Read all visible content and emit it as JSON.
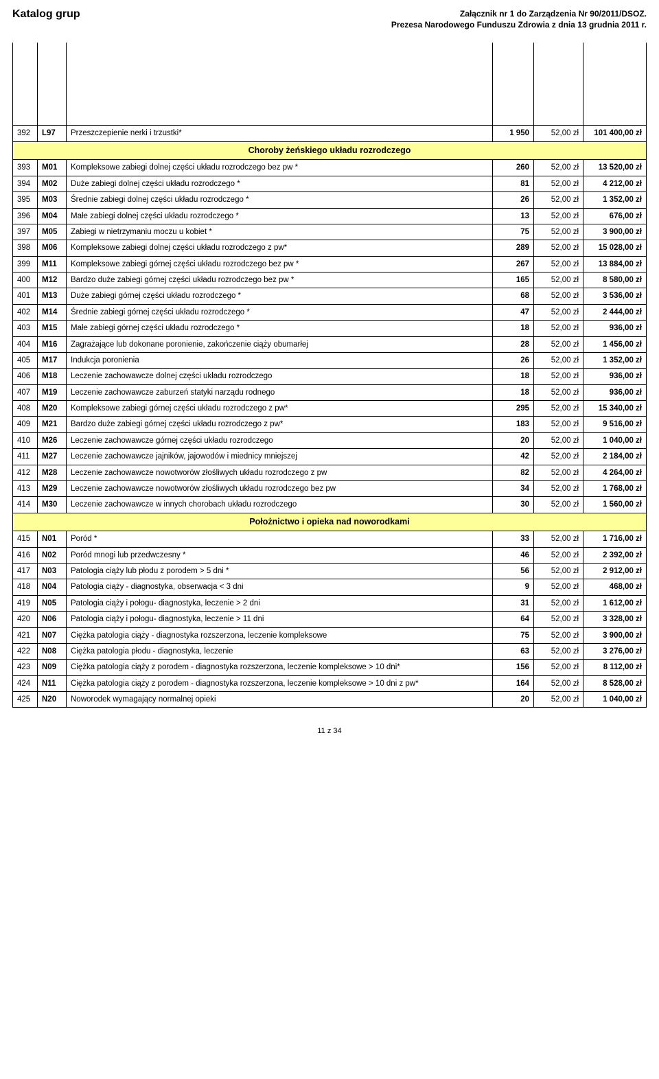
{
  "header": {
    "title": "Katalog grup",
    "right_line1": "Załącznik nr 1 do Zarządzenia Nr 90/2011/DSOZ.",
    "right_line2": "Prezesa Narodowego Funduszu Zdrowia z dnia 13 grudnia 2011 r."
  },
  "layout": {
    "background_color": "#ffffff",
    "section_bg": "#ffff99",
    "border_color": "#000000",
    "fontsize_body": 11.5,
    "fontsize_header": 12
  },
  "rows": [
    {
      "type": "spacer"
    },
    {
      "type": "data",
      "num": "392",
      "code": "L97",
      "desc": "Przeszczepienie nerki i trzustki*",
      "v1": "1 950",
      "v2": "52,00 zł",
      "v3": "101 400,00 zł"
    },
    {
      "type": "section",
      "title": "Choroby żeńskiego układu rozrodczego"
    },
    {
      "type": "data",
      "num": "393",
      "code": "M01",
      "desc": "Kompleksowe zabiegi dolnej części układu rozrodczego bez pw *",
      "v1": "260",
      "v2": "52,00 zł",
      "v3": "13 520,00 zł"
    },
    {
      "type": "data",
      "num": "394",
      "code": "M02",
      "desc": "Duże zabiegi dolnej części układu rozrodczego *",
      "v1": "81",
      "v2": "52,00 zł",
      "v3": "4 212,00 zł"
    },
    {
      "type": "data",
      "num": "395",
      "code": "M03",
      "desc": "Średnie zabiegi dolnej części układu rozrodczego *",
      "v1": "26",
      "v2": "52,00 zł",
      "v3": "1 352,00 zł"
    },
    {
      "type": "data",
      "num": "396",
      "code": "M04",
      "desc": "Małe zabiegi dolnej części układu rozrodczego *",
      "v1": "13",
      "v2": "52,00 zł",
      "v3": "676,00 zł"
    },
    {
      "type": "data",
      "num": "397",
      "code": "M05",
      "desc": "Zabiegi w nietrzymaniu moczu u kobiet *",
      "v1": "75",
      "v2": "52,00 zł",
      "v3": "3 900,00 zł"
    },
    {
      "type": "data",
      "num": "398",
      "code": "M06",
      "desc": "Kompleksowe zabiegi dolnej części układu rozrodczego z pw*",
      "v1": "289",
      "v2": "52,00 zł",
      "v3": "15 028,00 zł"
    },
    {
      "type": "data",
      "num": "399",
      "code": "M11",
      "desc": "Kompleksowe zabiegi górnej części układu rozrodczego bez pw *",
      "v1": "267",
      "v2": "52,00 zł",
      "v3": "13 884,00 zł"
    },
    {
      "type": "data",
      "num": "400",
      "code": "M12",
      "desc": "Bardzo duże zabiegi górnej części układu rozrodczego bez pw *",
      "v1": "165",
      "v2": "52,00 zł",
      "v3": "8 580,00 zł"
    },
    {
      "type": "data",
      "num": "401",
      "code": "M13",
      "desc": "Duże zabiegi górnej części układu rozrodczego *",
      "v1": "68",
      "v2": "52,00 zł",
      "v3": "3 536,00 zł"
    },
    {
      "type": "data",
      "num": "402",
      "code": "M14",
      "desc": "Średnie zabiegi górnej części układu rozrodczego *",
      "v1": "47",
      "v2": "52,00 zł",
      "v3": "2 444,00 zł"
    },
    {
      "type": "data",
      "num": "403",
      "code": "M15",
      "desc": "Małe zabiegi górnej części układu rozrodczego *",
      "v1": "18",
      "v2": "52,00 zł",
      "v3": "936,00 zł"
    },
    {
      "type": "data",
      "num": "404",
      "code": "M16",
      "desc": "Zagrażające lub dokonane poronienie, zakończenie ciąży obumarłej",
      "v1": "28",
      "v2": "52,00 zł",
      "v3": "1 456,00 zł"
    },
    {
      "type": "data",
      "num": "405",
      "code": "M17",
      "desc": "Indukcja poronienia",
      "v1": "26",
      "v2": "52,00 zł",
      "v3": "1 352,00 zł"
    },
    {
      "type": "data",
      "num": "406",
      "code": "M18",
      "desc": "Leczenie zachowawcze dolnej części układu rozrodczego",
      "v1": "18",
      "v2": "52,00 zł",
      "v3": "936,00 zł"
    },
    {
      "type": "data",
      "num": "407",
      "code": "M19",
      "desc": "Leczenie zachowawcze zaburzeń statyki narządu rodnego",
      "v1": "18",
      "v2": "52,00 zł",
      "v3": "936,00 zł"
    },
    {
      "type": "data",
      "num": "408",
      "code": "M20",
      "desc": "Kompleksowe zabiegi górnej części układu rozrodczego z pw*",
      "v1": "295",
      "v2": "52,00 zł",
      "v3": "15 340,00 zł"
    },
    {
      "type": "data",
      "num": "409",
      "code": "M21",
      "desc": "Bardzo duże zabiegi górnej części układu rozrodczego z pw*",
      "v1": "183",
      "v2": "52,00 zł",
      "v3": "9 516,00 zł"
    },
    {
      "type": "data",
      "num": "410",
      "code": "M26",
      "desc": "Leczenie zachowawcze górnej części układu rozrodczego",
      "v1": "20",
      "v2": "52,00 zł",
      "v3": "1 040,00 zł"
    },
    {
      "type": "data",
      "num": "411",
      "code": "M27",
      "desc": "Leczenie zachowawcze jajników, jajowodów i miednicy mniejszej",
      "v1": "42",
      "v2": "52,00 zł",
      "v3": "2 184,00 zł"
    },
    {
      "type": "data",
      "num": "412",
      "code": "M28",
      "desc": "Leczenie zachowawcze nowotworów złośliwych układu rozrodczego z pw",
      "v1": "82",
      "v2": "52,00 zł",
      "v3": "4 264,00 zł"
    },
    {
      "type": "data",
      "num": "413",
      "code": "M29",
      "desc": "Leczenie zachowawcze nowotworów złośliwych układu rozrodczego bez pw",
      "v1": "34",
      "v2": "52,00 zł",
      "v3": "1 768,00 zł"
    },
    {
      "type": "data",
      "num": "414",
      "code": "M30",
      "desc": "Leczenie zachowawcze w innych chorobach układu rozrodczego",
      "v1": "30",
      "v2": "52,00 zł",
      "v3": "1 560,00 zł"
    },
    {
      "type": "section",
      "title": "Położnictwo i opieka nad noworodkami"
    },
    {
      "type": "data",
      "num": "415",
      "code": "N01",
      "desc": "Poród *",
      "v1": "33",
      "v2": "52,00 zł",
      "v3": "1 716,00 zł"
    },
    {
      "type": "data",
      "num": "416",
      "code": "N02",
      "desc": "Poród mnogi lub przedwczesny *",
      "v1": "46",
      "v2": "52,00 zł",
      "v3": "2 392,00 zł"
    },
    {
      "type": "data",
      "num": "417",
      "code": "N03",
      "desc": "Patologia ciąży lub płodu z porodem > 5 dni *",
      "v1": "56",
      "v2": "52,00 zł",
      "v3": "2 912,00 zł"
    },
    {
      "type": "data",
      "num": "418",
      "code": "N04",
      "desc": "Patologia ciąży - diagnostyka, obserwacja < 3 dni",
      "v1": "9",
      "v2": "52,00 zł",
      "v3": "468,00 zł"
    },
    {
      "type": "data",
      "num": "419",
      "code": "N05",
      "desc": "Patologia ciąży i połogu- diagnostyka, leczenie > 2 dni",
      "v1": "31",
      "v2": "52,00 zł",
      "v3": "1 612,00 zł"
    },
    {
      "type": "data",
      "num": "420",
      "code": "N06",
      "desc": "Patologia ciąży i połogu- diagnostyka, leczenie > 11 dni",
      "v1": "64",
      "v2": "52,00 zł",
      "v3": "3 328,00 zł"
    },
    {
      "type": "data",
      "num": "421",
      "code": "N07",
      "desc": "Ciężka patologia ciąży - diagnostyka rozszerzona, leczenie kompleksowe",
      "v1": "75",
      "v2": "52,00 zł",
      "v3": "3 900,00 zł"
    },
    {
      "type": "data",
      "num": "422",
      "code": "N08",
      "desc": "Ciężka patologia płodu - diagnostyka, leczenie",
      "v1": "63",
      "v2": "52,00 zł",
      "v3": "3 276,00 zł"
    },
    {
      "type": "data",
      "num": "423",
      "code": "N09",
      "desc": "Ciężka patologia ciąży z porodem - diagnostyka rozszerzona, leczenie kompleksowe > 10 dni*",
      "v1": "156",
      "v2": "52,00 zł",
      "v3": "8 112,00 zł"
    },
    {
      "type": "data",
      "num": "424",
      "code": "N11",
      "desc": "Ciężka patologia ciąży z porodem - diagnostyka rozszerzona, leczenie kompleksowe > 10 dni z pw*",
      "v1": "164",
      "v2": "52,00 zł",
      "v3": "8 528,00 zł"
    },
    {
      "type": "data",
      "num": "425",
      "code": "N20",
      "desc": "Noworodek wymagający normalnej opieki",
      "v1": "20",
      "v2": "52,00 zł",
      "v3": "1 040,00 zł"
    }
  ],
  "footer": "11 z 34"
}
